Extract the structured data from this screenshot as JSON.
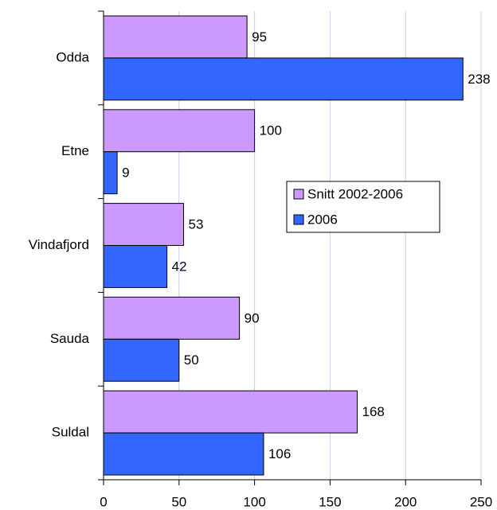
{
  "chart_data": {
    "type": "hbar",
    "categories": [
      "Odda",
      "Etne",
      "Vindafjord",
      "Sauda",
      "Suldal"
    ],
    "series": [
      {
        "name": "Snitt 2002-2006",
        "color": "#cc99ff",
        "values": [
          95,
          100,
          53,
          90,
          168
        ]
      },
      {
        "name": "2006",
        "color": "#3366ff",
        "values": [
          238,
          9,
          42,
          50,
          106
        ]
      }
    ],
    "xlim": [
      0,
      250
    ],
    "xticks": [
      0,
      50,
      100,
      150,
      200,
      250
    ],
    "grid": true,
    "legend": "right"
  }
}
